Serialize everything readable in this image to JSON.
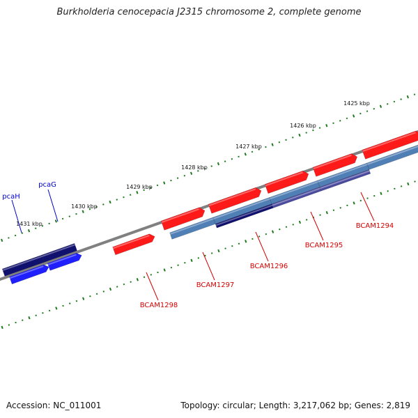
{
  "title": "Burkholderia cenocepacia J2315 chromosome 2, complete genome",
  "footer": {
    "accession": "Accession: NC_011001",
    "summary": "Topology: circular; Length: 3,217,062 bp; Genes: 2,819"
  },
  "colors": {
    "backbone": "#808080",
    "tick": "#1e7a1e",
    "forward_cds": "#ff1a1a",
    "forward_cds_dark": "#b00000",
    "reverse_blue": "#1f1fff",
    "reverse_navy": "#10106e",
    "steel": "#4f7fb5",
    "purple": "#4a4a9e",
    "locus_label": "#d40000",
    "gene_name_label": "#0000cc"
  },
  "kbp_labels": [
    "1425 kbp",
    "1426 kbp",
    "1427 kbp",
    "1428 kbp",
    "1429 kbp",
    "1430 kbp",
    "1431 kbp"
  ],
  "genes": [
    {
      "label": "BCAM1294",
      "type": "locus"
    },
    {
      "label": "BCAM1295",
      "type": "locus"
    },
    {
      "label": "BCAM1296",
      "type": "locus"
    },
    {
      "label": "BCAM1297",
      "type": "locus"
    },
    {
      "label": "BCAM1298",
      "type": "locus"
    },
    {
      "label": "pcaG",
      "type": "gene-name"
    },
    {
      "label": "pcaH",
      "type": "gene-name"
    }
  ]
}
